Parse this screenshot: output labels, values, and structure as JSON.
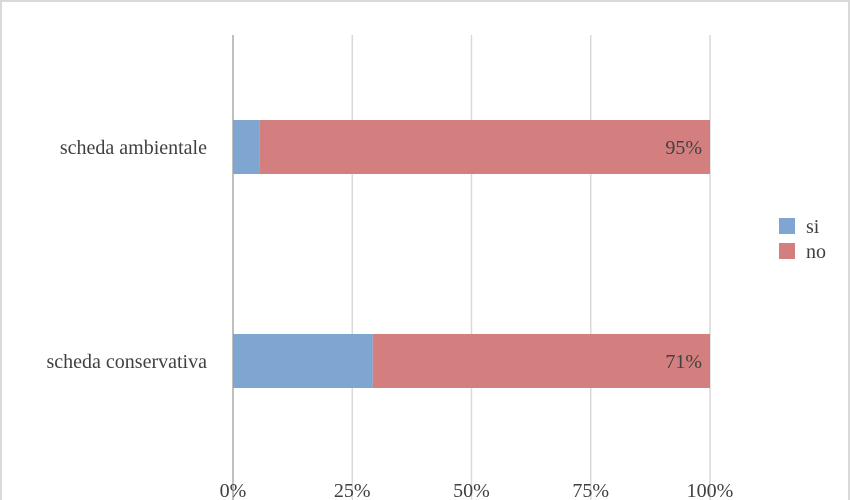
{
  "chart_data": {
    "type": "bar",
    "orientation": "horizontal",
    "stacking": "percent",
    "categories": [
      "scheda ambientale",
      "scheda conservativa"
    ],
    "series": [
      {
        "name": "si",
        "values": [
          5.5,
          29.3
        ],
        "color": "#7fa6d1"
      },
      {
        "name": "no",
        "values": [
          94.5,
          70.7
        ],
        "color": "#d47f7f"
      }
    ],
    "data_labels": {
      "no": [
        "95%",
        "71%"
      ]
    },
    "xlim": [
      0,
      100
    ],
    "xticks": [
      "0%",
      "25%",
      "50%",
      "75%",
      "100%"
    ],
    "grid": true,
    "legend_position": "right",
    "title": "",
    "xlabel": "",
    "ylabel": ""
  }
}
